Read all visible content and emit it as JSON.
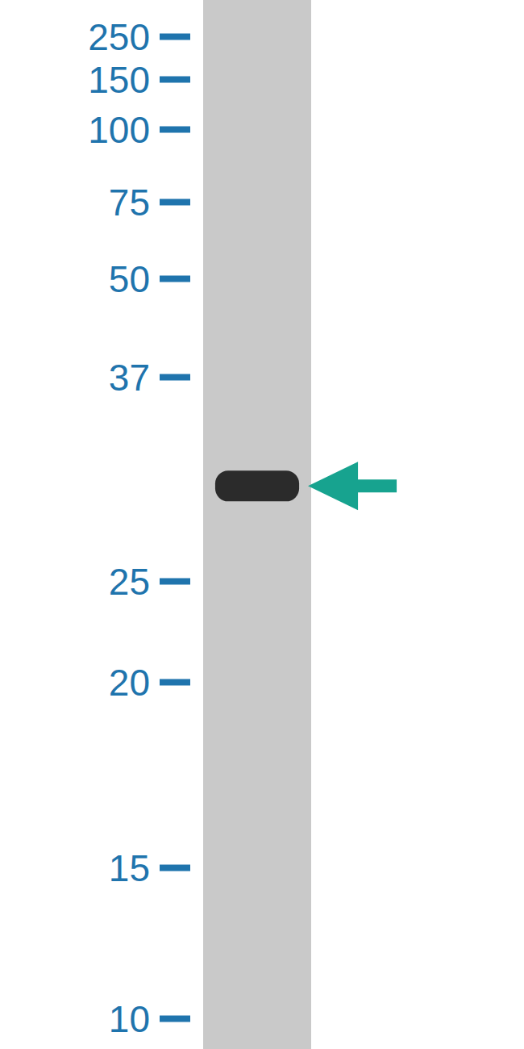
{
  "chart_data": {
    "type": "blot",
    "log": "y",
    "categories": [
      null
    ],
    "values": [
      30
    ],
    "color": "#2b2b2b",
    "ylim": [
      10,
      250
    ],
    "yticks": [
      10,
      15,
      20,
      25,
      37,
      50,
      75,
      100,
      150,
      250
    ]
  }
}
